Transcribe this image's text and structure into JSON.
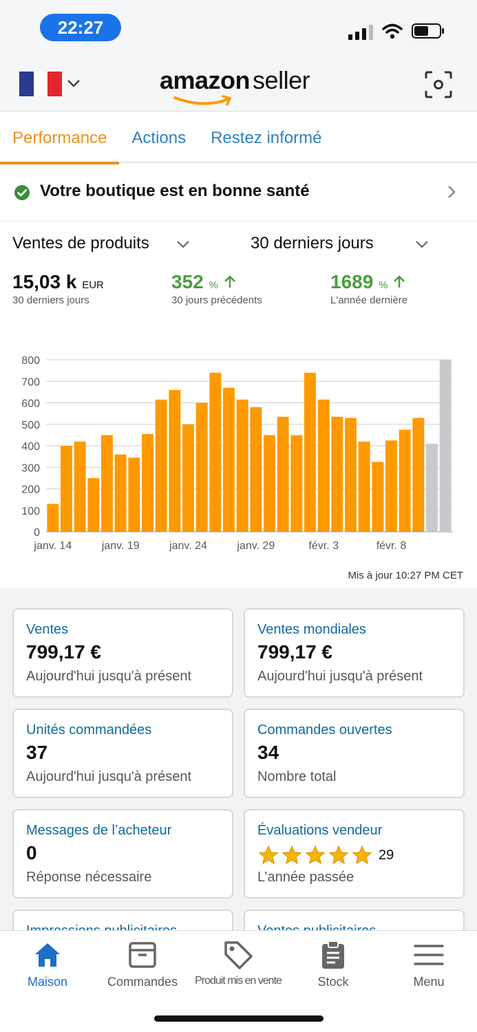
{
  "status_bar": {
    "time": "22:27"
  },
  "header": {
    "logo_amazon": "amazon",
    "logo_seller": "seller"
  },
  "colors": {
    "accent_orange": "#e8911c",
    "link_blue": "#2f7fc1",
    "green": "#4a9d3f",
    "bar_orange": "#ff9900",
    "bar_gray": "#c8c9cc"
  },
  "tabs": [
    {
      "label": "Performance",
      "active": true
    },
    {
      "label": "Actions",
      "active": false
    },
    {
      "label": "Restez informé",
      "active": false
    }
  ],
  "health": {
    "text": "Votre boutique est en bonne santé"
  },
  "selectors": {
    "metric": "Ventes de produits",
    "period": "30 derniers jours"
  },
  "kpis": [
    {
      "value": "15,03 k",
      "unit": "EUR",
      "sub": "30 derniers jours"
    },
    {
      "value": "352",
      "unit": "%",
      "sub": "30 jours précédents"
    },
    {
      "value": "1689",
      "unit": "%",
      "sub": "L'année dernière"
    }
  ],
  "chart_data": {
    "type": "bar",
    "ylim": [
      0,
      800
    ],
    "y_ticks": [
      "0",
      "100",
      "200",
      "300",
      "400",
      "500",
      "600",
      "700",
      "800"
    ],
    "x_tick_labels": [
      "janv. 14",
      "janv. 19",
      "janv. 24",
      "janv. 29",
      "févr. 3",
      "févr. 8"
    ],
    "values": [
      130,
      400,
      420,
      250,
      450,
      360,
      345,
      455,
      615,
      660,
      500,
      600,
      740,
      670,
      615,
      580,
      450,
      535,
      450,
      740,
      615,
      535,
      530,
      420,
      325,
      425,
      475,
      530,
      410,
      800
    ],
    "highlight_gray_indices": [
      28,
      29
    ],
    "grid": true
  },
  "updated": "Mis à jour 10:27 PM CET",
  "cards": [
    {
      "title": "Ventes",
      "value": "799,17 €",
      "sub": "Aujourd'hui jusqu'à présent"
    },
    {
      "title": "Ventes mondiales",
      "value": "799,17 €",
      "sub": "Aujourd'hui jusqu'à présent"
    },
    {
      "title": "Unités commandées",
      "value": "37",
      "sub": "Aujourd'hui jusqu'à présent"
    },
    {
      "title": "Commandes ouvertes",
      "value": "34",
      "sub": "Nombre total"
    },
    {
      "title": "Messages de l’acheteur",
      "value": "0",
      "sub": "Réponse nécessaire"
    },
    {
      "title": "Évaluations vendeur",
      "rating": 5,
      "count": "29",
      "sub": "L’année passée"
    },
    {
      "title": "Impressions publicitaires"
    },
    {
      "title": "Ventes publicitaires"
    }
  ],
  "nav": [
    {
      "label": "Maison",
      "icon": "home-icon",
      "active": true
    },
    {
      "label": "Commandes",
      "icon": "box-icon",
      "active": false
    },
    {
      "label": "Produit mis en vente",
      "icon": "tag-icon",
      "active": false
    },
    {
      "label": "Stock",
      "icon": "clipboard-icon",
      "active": false
    },
    {
      "label": "Menu",
      "icon": "menu-icon",
      "active": false
    }
  ]
}
